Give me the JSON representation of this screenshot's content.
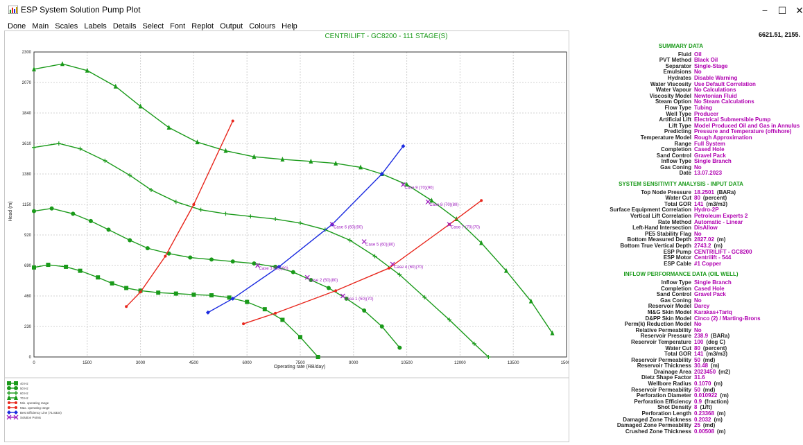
{
  "window": {
    "title": "ESP System Solution Pump Plot",
    "minimize": "−",
    "maximize": "☐",
    "close": "✕"
  },
  "menu": [
    "Done",
    "Main",
    "Scales",
    "Labels",
    "Details",
    "Select",
    "Font",
    "Replot",
    "Output",
    "Colours",
    "Help"
  ],
  "coordinate_readout": "6621.51, 2155.",
  "legend": [
    {
      "label": "40 Hz",
      "color": "#1a9a1a",
      "marker": "square"
    },
    {
      "label": "50 Hz",
      "color": "#1a9a1a",
      "marker": "circle"
    },
    {
      "label": "60 Hz",
      "color": "#1a9a1a",
      "marker": "plus"
    },
    {
      "label": "70 Hz",
      "color": "#1a9a1a",
      "marker": "triangle"
    },
    {
      "label": "Min. operating range",
      "color": "#e8261c",
      "marker": "arrow"
    },
    {
      "label": "Max. operating range",
      "color": "#e8261c",
      "marker": "arrow"
    },
    {
      "label": "Best Efficiency Line (71.8334)",
      "color": "#1a2ae0",
      "marker": "diamond"
    },
    {
      "label": "Solution Points",
      "color": "#a020c0",
      "marker": "x"
    }
  ],
  "chart_data": {
    "type": "line",
    "title": "CENTRILIFT - GC8200 - 111 STAGE(S)",
    "xlabel": "Operating rate   (RB/day)",
    "ylabel": "Head   (m)",
    "xlim": [
      0,
      15000
    ],
    "ylim": [
      0,
      2300
    ],
    "xticks": [
      0,
      1500,
      3000,
      4500,
      6000,
      7500,
      9000,
      10500,
      12000,
      13500,
      15000
    ],
    "yticks": [
      0,
      230,
      460,
      690,
      920,
      1150,
      1380,
      1610,
      1840,
      2070,
      2300
    ],
    "grid": true,
    "series": [
      {
        "name": "40 Hz",
        "color": "#1a9a1a",
        "marker": "square",
        "x": [
          0,
          400,
          900,
          1300,
          1800,
          2200,
          2600,
          3000,
          3500,
          4000,
          4500,
          5000,
          5500,
          6000,
          6500,
          7000,
          7500,
          8000
        ],
        "y": [
          675,
          695,
          680,
          650,
          600,
          555,
          520,
          500,
          485,
          478,
          470,
          465,
          448,
          415,
          360,
          280,
          150,
          0
        ]
      },
      {
        "name": "50 Hz",
        "color": "#1a9a1a",
        "marker": "circle",
        "x": [
          0,
          500,
          1100,
          1600,
          2100,
          2700,
          3200,
          3800,
          4400,
          5000,
          5600,
          6200,
          6800,
          7300,
          7800,
          8300,
          8800,
          9300,
          9800,
          10300
        ],
        "y": [
          1100,
          1120,
          1080,
          1025,
          960,
          880,
          820,
          780,
          750,
          735,
          720,
          705,
          680,
          640,
          580,
          520,
          440,
          350,
          230,
          70
        ]
      },
      {
        "name": "60 Hz",
        "color": "#1a9a1a",
        "marker": "plus",
        "x": [
          0,
          700,
          1300,
          2000,
          2700,
          3300,
          4000,
          4700,
          5400,
          6100,
          6800,
          7500,
          8200,
          8900,
          9600,
          10300,
          11000,
          11700,
          12400,
          12800
        ],
        "y": [
          1580,
          1610,
          1570,
          1480,
          1370,
          1260,
          1170,
          1110,
          1080,
          1060,
          1040,
          1010,
          960,
          880,
          760,
          620,
          450,
          280,
          100,
          0
        ]
      },
      {
        "name": "70 Hz",
        "color": "#1a9a1a",
        "marker": "triangle",
        "x": [
          0,
          800,
          1500,
          2300,
          3000,
          3800,
          4600,
          5400,
          6200,
          7000,
          7800,
          8500,
          9200,
          9800,
          10500,
          11200,
          11900,
          12600,
          13300,
          14000,
          14600
        ],
        "y": [
          2170,
          2210,
          2160,
          2040,
          1890,
          1730,
          1620,
          1555,
          1510,
          1490,
          1475,
          1460,
          1430,
          1380,
          1300,
          1180,
          1040,
          860,
          650,
          420,
          180
        ]
      },
      {
        "name": "Min. operating range",
        "color": "#e8261c",
        "marker": "arrow",
        "x": [
          2600,
          3000,
          3700,
          4500,
          5600
        ],
        "y": [
          380,
          490,
          760,
          1150,
          1780
        ]
      },
      {
        "name": "Max. operating range",
        "color": "#e8261c",
        "marker": "arrow",
        "x": [
          5900,
          6800,
          8500,
          10000,
          11700,
          12600
        ],
        "y": [
          250,
          330,
          500,
          670,
          1000,
          1180
        ]
      },
      {
        "name": "Best Efficiency Line (71.8334)",
        "color": "#1a2ae0",
        "marker": "diamond",
        "x": [
          4900,
          5600,
          6900,
          8400,
          9800,
          10400
        ],
        "y": [
          335,
          440,
          680,
          1000,
          1380,
          1590
        ]
      }
    ],
    "solution_points": [
      {
        "label": "Case 1 (50)(70)",
        "x": 8700,
        "y": 460
      },
      {
        "label": "Case 2 (50)(80)",
        "x": 7700,
        "y": 600
      },
      {
        "label": "Case 3 (50)(90)",
        "x": 6300,
        "y": 690
      },
      {
        "label": "Case 4 (60)(70)",
        "x": 10100,
        "y": 700
      },
      {
        "label": "Case 5 (60)(80)",
        "x": 9300,
        "y": 870
      },
      {
        "label": "Case 6 (60)(90)",
        "x": 8400,
        "y": 1000
      },
      {
        "label": "Case 7 (70)(70)",
        "x": 11700,
        "y": 1000
      },
      {
        "label": "Case 8 (70)(80)",
        "x": 11100,
        "y": 1170
      },
      {
        "label": "Case 9 (70)(90)",
        "x": 10400,
        "y": 1300
      }
    ]
  },
  "panel": {
    "sections": [
      {
        "title": "SUMMARY DATA",
        "rows": [
          {
            "label": "Fluid",
            "value": "Oil"
          },
          {
            "label": "PVT Method",
            "value": "Black Oil"
          },
          {
            "label": "Separator",
            "value": "Single-Stage"
          },
          {
            "label": "Emulsions",
            "value": "No"
          },
          {
            "label": "Hydrates",
            "value": "Disable Warning"
          },
          {
            "label": "Water Viscosity",
            "value": "Use Default Correlation"
          },
          {
            "label": "Water Vapour",
            "value": "No Calculations"
          },
          {
            "label": "Viscosity Model",
            "value": "Newtonian Fluid"
          },
          {
            "label": "Steam Option",
            "value": "No Steam Calculations"
          },
          {
            "label": "Flow Type",
            "value": "Tubing"
          },
          {
            "label": "Well Type",
            "value": "Producer"
          },
          {
            "label": "Artificial Lift",
            "value": "Electrical Submersible Pump"
          },
          {
            "label": "Lift Type",
            "value": "Model Produced Oil and Gas in Annulus"
          },
          {
            "label": "Predicting",
            "value": "Pressure and Temperature (offshore)"
          },
          {
            "label": "Temperature Model",
            "value": "Rough Approximation"
          },
          {
            "label": "Range",
            "value": "Full System"
          },
          {
            "label": "Completion",
            "value": "Cased Hole"
          },
          {
            "label": "Sand Control",
            "value": "Gravel Pack"
          },
          {
            "label": "Inflow Type",
            "value": "Single Branch"
          },
          {
            "label": "Gas Coning",
            "value": "No"
          },
          {
            "label": "Date",
            "value": "13.07.2023"
          }
        ]
      },
      {
        "title": "SYSTEM SENSITIVITY ANALYSIS - INPUT DATA",
        "rows": [
          {
            "label": "Top Node Pressure",
            "value": "18.2501",
            "unit": "(BARa)"
          },
          {
            "label": "Water Cut",
            "value": "80",
            "unit": "(percent)"
          },
          {
            "label": "Total GOR",
            "value": "141",
            "unit": "(m3/m3)"
          },
          {
            "label": "Surface Equipment Correlation",
            "value": "Hydro-2P"
          },
          {
            "label": "Vertical Lift Correlation",
            "value": "Petroleum Experts 2"
          },
          {
            "label": "Rate Method",
            "value": "Automatic - Linear"
          },
          {
            "label": "Left-Hand Intersection",
            "value": "DisAllow"
          },
          {
            "label": "PE5 Stability Flag",
            "value": "No"
          },
          {
            "label": "Bottom Measured Depth",
            "value": "2827.02",
            "unit": "(m)"
          },
          {
            "label": "Bottom True Vertical Depth",
            "value": "2743.2",
            "unit": "(m)"
          },
          {
            "label": "ESP Pump",
            "value": "CENTRILIFT - GC8200"
          },
          {
            "label": "ESP Motor",
            "value": "Centrilift - 544"
          },
          {
            "label": "ESP Cable",
            "value": "#1 Copper"
          }
        ]
      },
      {
        "title": "INFLOW PERFORMANCE DATA (OIL WELL)",
        "rows": [
          {
            "label": "Inflow Type",
            "value": "Single Branch"
          },
          {
            "label": "Completion",
            "value": "Cased Hole"
          },
          {
            "label": "Sand Control",
            "value": "Gravel Pack"
          },
          {
            "label": "Gas Coning",
            "value": "No"
          },
          {
            "label": "Reservoir Model",
            "value": "Darcy"
          },
          {
            "label": "M&G Skin Model",
            "value": "Karakas+Tariq"
          },
          {
            "label": "D&PP Skin Model",
            "value": "Cinco (2) / Marting-Brons"
          },
          {
            "label": "Perm(k) Reduction Model",
            "value": "No"
          },
          {
            "label": "Relative Permeability",
            "value": "No"
          },
          {
            "label": "Reservoir Pressure",
            "value": "238.9",
            "unit": "(BARa)"
          },
          {
            "label": "Reservoir Temperature",
            "value": "100",
            "unit": "(deg C)"
          },
          {
            "label": "Water Cut",
            "value": "80",
            "unit": "(percent)"
          },
          {
            "label": "Total GOR",
            "value": "141",
            "unit": "(m3/m3)"
          },
          {
            "label": "Reservoir Permeability",
            "value": "50",
            "unit": "(md)"
          },
          {
            "label": "Reservoir Thickness",
            "value": "30.48",
            "unit": "(m)"
          },
          {
            "label": "Drainage Area",
            "value": "2023450",
            "unit": "(m2)"
          },
          {
            "label": "Dietz Shape Factor",
            "value": "31.6"
          },
          {
            "label": "Wellbore Radius",
            "value": "0.1070",
            "unit": "(m)"
          },
          {
            "label": "Reservoir Permeability",
            "value": "50",
            "unit": "(md)"
          },
          {
            "label": "Perforation Diameter",
            "value": "0.010922",
            "unit": "(m)"
          },
          {
            "label": "Perforation Efficiency",
            "value": "0.9",
            "unit": "(fraction)"
          },
          {
            "label": "Shot Density",
            "value": "8",
            "unit": "(1/ft)"
          },
          {
            "label": "Perforation Length",
            "value": "0.23368",
            "unit": "(m)"
          },
          {
            "label": "Damaged Zone Thickness",
            "value": "0.2032",
            "unit": "(m)"
          },
          {
            "label": "Damaged Zone Permeability",
            "value": "25",
            "unit": "(md)"
          },
          {
            "label": "Crushed Zone Thickness",
            "value": "0.00508",
            "unit": "(m)"
          }
        ]
      }
    ]
  }
}
